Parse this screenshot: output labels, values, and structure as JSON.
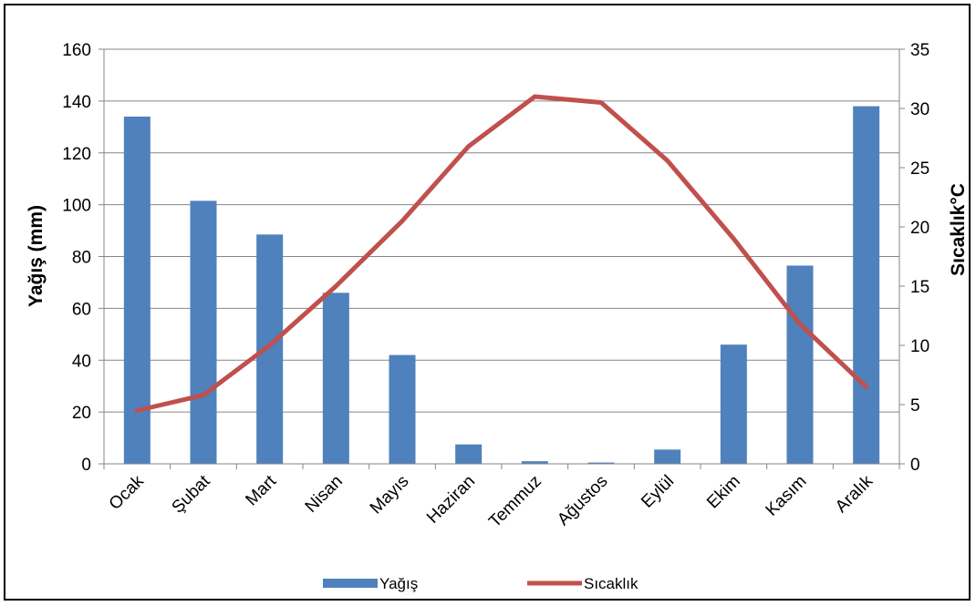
{
  "chart_data": {
    "type": "bar",
    "categories": [
      "Ocak",
      "Şubat",
      "Mart",
      "Nisan",
      "Mayıs",
      "Haziran",
      "Temmuz",
      "Ağustos",
      "Eylül",
      "Ekim",
      "Kasım",
      "Aralık"
    ],
    "series": [
      {
        "name": "Yağış",
        "type": "bar",
        "axis": "left",
        "color": "#4F81BD",
        "values": [
          134,
          101.5,
          88.5,
          66,
          42,
          7.5,
          1,
          0.5,
          5.5,
          46,
          76.5,
          138
        ]
      },
      {
        "name": "Sıcaklık",
        "type": "line",
        "axis": "right",
        "color": "#C0504D",
        "values": [
          4.5,
          5.8,
          10,
          15,
          20.5,
          26.8,
          31,
          30.5,
          25.6,
          19,
          11.8,
          6.5
        ]
      }
    ],
    "ylabel": "Yağış  (mm)",
    "y2label": "Sıcaklık°C",
    "xlabel": "",
    "ylim": [
      0,
      160
    ],
    "y2lim": [
      0,
      35
    ],
    "yticks": [
      "0",
      "20",
      "40",
      "60",
      "80",
      "100",
      "120",
      "140",
      "160"
    ],
    "y2ticks": [
      "0",
      "5",
      "10",
      "15",
      "20",
      "25",
      "30",
      "35"
    ],
    "grid": "horizontal",
    "legend_position": "bottom"
  }
}
